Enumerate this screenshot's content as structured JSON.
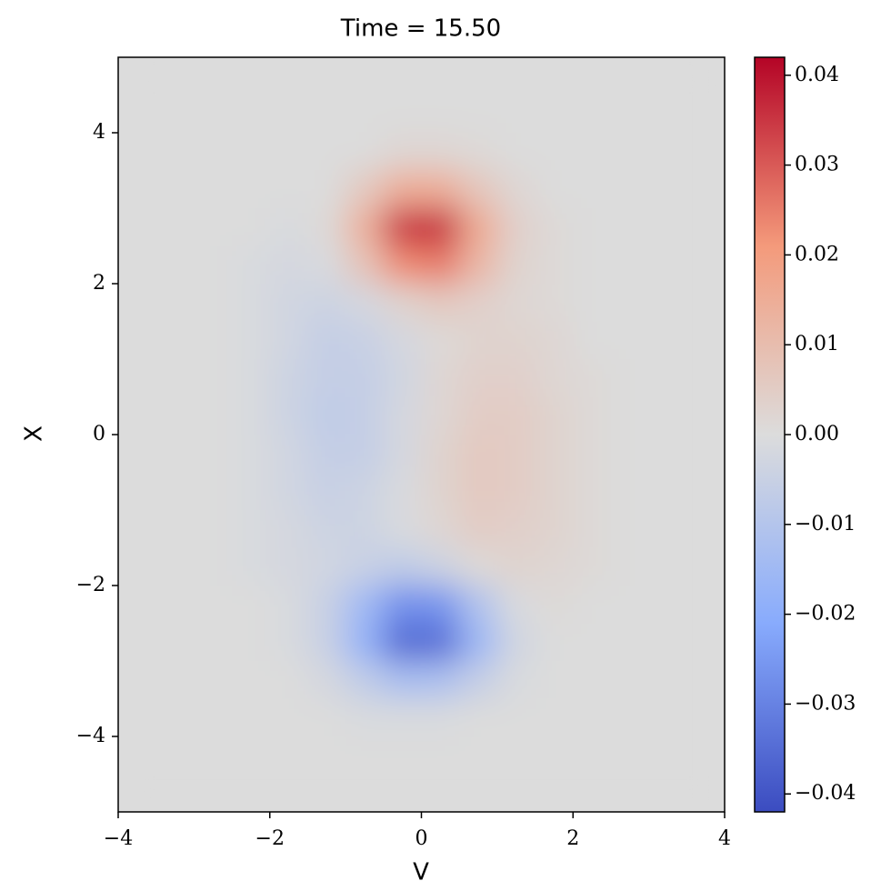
{
  "chart_data": {
    "type": "heatmap",
    "title": "Time = 15.50",
    "xlabel": "V",
    "ylabel": "X",
    "xlim": [
      -4,
      4
    ],
    "ylim": [
      -5,
      5
    ],
    "xticks": [
      {
        "value": -4,
        "label": "−4"
      },
      {
        "value": -2,
        "label": "−2"
      },
      0,
      2,
      4
    ],
    "yticks": [
      {
        "value": -4,
        "label": "−4"
      },
      {
        "value": -2,
        "label": "−2"
      },
      0,
      2,
      4
    ],
    "x": [
      -3.75,
      -3.25,
      -2.75,
      -2.25,
      -1.75,
      -1.25,
      -0.75,
      -0.25,
      0.25,
      0.75,
      1.25,
      1.75,
      2.25,
      2.75,
      3.25,
      3.75
    ],
    "y": [
      4.75,
      4.25,
      3.75,
      3.25,
      2.75,
      2.25,
      1.75,
      1.25,
      0.75,
      0.25,
      -0.25,
      -0.75,
      -1.25,
      -1.75,
      -2.25,
      -2.75,
      -3.25,
      -3.75,
      -4.25,
      -4.75
    ],
    "values": [
      [
        0,
        0,
        0,
        0,
        0,
        0,
        0,
        0,
        0,
        0,
        0,
        0,
        0,
        0,
        0,
        0
      ],
      [
        0,
        0,
        0,
        0,
        0,
        0,
        0,
        0,
        0,
        0,
        0,
        0,
        0,
        0,
        0,
        0
      ],
      [
        0,
        0,
        0,
        0,
        0,
        0,
        0,
        0.002,
        0.002,
        0.001,
        0,
        0,
        0,
        0,
        0,
        0
      ],
      [
        0,
        0,
        0,
        0,
        0,
        0,
        0.006,
        0.015,
        0.015,
        0.007,
        0.002,
        0,
        0,
        0,
        0,
        0
      ],
      [
        0,
        0,
        0,
        0,
        -0.001,
        0.001,
        0.014,
        0.035,
        0.036,
        0.016,
        0.004,
        0.001,
        0,
        0,
        0,
        0
      ],
      [
        0,
        0,
        0,
        -0.001,
        -0.002,
        -0.001,
        0.008,
        0.023,
        0.025,
        0.012,
        0.003,
        0.001,
        0,
        0,
        0,
        0
      ],
      [
        0,
        0,
        0,
        -0.001,
        -0.003,
        -0.004,
        -0.002,
        0.003,
        0.006,
        0.004,
        0.002,
        0.001,
        0,
        0,
        0,
        0
      ],
      [
        0,
        0,
        0,
        -0.001,
        -0.003,
        -0.006,
        -0.005,
        -0.002,
        0.001,
        0.003,
        0.003,
        0.002,
        0,
        0,
        0,
        0
      ],
      [
        0,
        0,
        0,
        -0.001,
        -0.004,
        -0.006,
        -0.006,
        -0.003,
        0.002,
        0.004,
        0.004,
        0.002,
        0.001,
        0,
        0,
        0
      ],
      [
        0,
        0,
        0,
        -0.001,
        -0.004,
        -0.007,
        -0.006,
        -0.002,
        0.002,
        0.005,
        0.005,
        0.003,
        0.001,
        0,
        0,
        0
      ],
      [
        0,
        0,
        0,
        -0.001,
        -0.003,
        -0.006,
        -0.006,
        -0.002,
        0.003,
        0.006,
        0.005,
        0.003,
        0.001,
        0,
        0,
        0
      ],
      [
        0,
        0,
        0,
        -0.001,
        -0.003,
        -0.005,
        -0.004,
        -0.001,
        0.003,
        0.006,
        0.005,
        0.003,
        0.001,
        0,
        0,
        0
      ],
      [
        0,
        0,
        0,
        -0.001,
        -0.002,
        -0.004,
        -0.004,
        -0.001,
        0.002,
        0.005,
        0.004,
        0.003,
        0.001,
        0,
        0,
        0
      ],
      [
        0,
        0,
        0,
        -0.001,
        -0.002,
        -0.003,
        -0.005,
        -0.007,
        -0.004,
        0.001,
        0.003,
        0.002,
        0.001,
        0,
        0,
        0
      ],
      [
        0,
        0,
        0,
        0,
        -0.001,
        -0.005,
        -0.015,
        -0.027,
        -0.026,
        -0.011,
        -0.001,
        0.001,
        0,
        0,
        0,
        0
      ],
      [
        0,
        0,
        0,
        0,
        -0.001,
        -0.005,
        -0.018,
        -0.035,
        -0.034,
        -0.016,
        -0.003,
        0,
        0,
        0,
        0,
        0
      ],
      [
        0,
        0,
        0,
        0,
        0,
        -0.002,
        -0.007,
        -0.013,
        -0.012,
        -0.006,
        -0.001,
        0,
        0,
        0,
        0,
        0
      ],
      [
        0,
        0,
        0,
        0,
        0,
        0,
        -0.001,
        -0.001,
        -0.001,
        0,
        0,
        0,
        0,
        0,
        0,
        0
      ],
      [
        0,
        0,
        0,
        0,
        0,
        0,
        0,
        0,
        0,
        0,
        0,
        0,
        0,
        0,
        0,
        0
      ],
      [
        0,
        0,
        0,
        0,
        0,
        0,
        0,
        0,
        0,
        0,
        0,
        0,
        0,
        0,
        0,
        0
      ]
    ],
    "colormap": [
      "#3b4cc0",
      "#88abfd",
      "#dcdcdc",
      "#f49a7b",
      "#b40426"
    ],
    "clim": [
      -0.042,
      0.042
    ],
    "cticks": [
      {
        "value": -0.04,
        "label": "−0.04"
      },
      {
        "value": -0.03,
        "label": "−0.03"
      },
      {
        "value": -0.02,
        "label": "−0.02"
      },
      {
        "value": -0.01,
        "label": "−0.01"
      },
      {
        "value": 0,
        "label": "0.00"
      },
      0.01,
      0.02,
      0.03,
      0.04
    ]
  }
}
